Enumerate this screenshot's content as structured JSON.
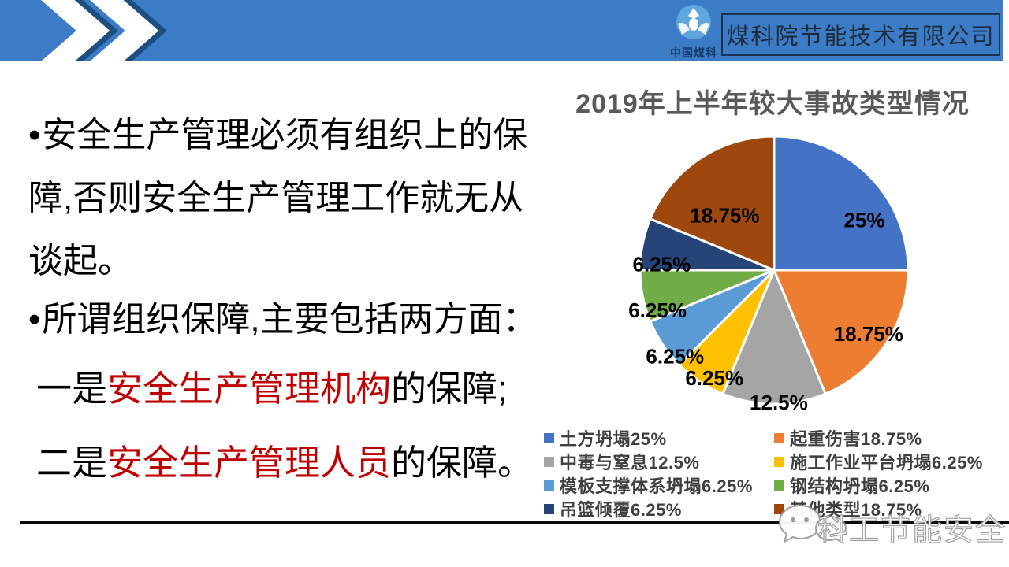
{
  "header": {
    "bar_color": "#3c7bc6",
    "logo_text": "中国煤科",
    "logo_icon_color": "#5fa6df",
    "company_name": "煤科院节能技术有限公司"
  },
  "body": {
    "bullet": "•",
    "p1_lines": [
      "安全生产管理必须有组织上的保",
      "障,否则安全生产管理工作就无从",
      "谈起。"
    ],
    "p2": "所谓组织保障,主要包括两方面：",
    "p3_prefix": "一是",
    "p3_red": "安全生产管理机构",
    "p3_suffix": "的保障;",
    "p4_prefix": "二是",
    "p4_red": "安全生产管理人员",
    "p4_suffix": "的保障。",
    "red_color": "#c00000"
  },
  "chart_data": {
    "type": "pie",
    "title": "2019年上半年较大事故类型情况",
    "start_angle_deg": 0,
    "direction": "clockwise",
    "legend_position": "bottom",
    "legend_columns": 2,
    "slices": [
      {
        "name": "土方坍塌",
        "value": 25,
        "label": "25%",
        "color": "#4472C4",
        "legend_label": "土方坍塌25%",
        "label_angle": 61,
        "label_r": 0.77
      },
      {
        "name": "起重伤害",
        "value": 18.75,
        "label": "18.75%",
        "color": "#ED7D31",
        "legend_label": "起重伤害18.75%",
        "label_angle": 124,
        "label_r": 0.85
      },
      {
        "name": "中毒与窒息",
        "value": 12.5,
        "label": "12.5%",
        "color": "#A5A5A5",
        "legend_label": "中毒与窒息12.5%",
        "label_angle": 178,
        "label_r": 0.99
      },
      {
        "name": "施工作业平台坍塌",
        "value": 6.25,
        "label": "6.25%",
        "color": "#FFC000",
        "legend_label": "施工作业平台坍塌6.25%",
        "label_angle": 209,
        "label_r": 0.92
      },
      {
        "name": "模板支撑体系坍塌",
        "value": 6.25,
        "label": "6.25%",
        "color": "#5B9BD5",
        "legend_label": "模板支撑体系坍塌6.25%",
        "label_angle": 229,
        "label_r": 0.98
      },
      {
        "name": "钢结构坍塌",
        "value": 6.25,
        "label": "6.25%",
        "color": "#70AD47",
        "legend_label": "钢结构坍塌6.25%",
        "label_angle": 251,
        "label_r": 0.92
      },
      {
        "name": "吊篮倾覆",
        "value": 6.25,
        "label": "6.25%",
        "color": "#264478",
        "legend_label": "吊篮倾覆6.25%",
        "label_angle": 273,
        "label_r": 0.84
      },
      {
        "name": "其他类型",
        "value": 18.75,
        "label": "18.75%",
        "color": "#9E480E",
        "legend_label": "其他类型18.75%",
        "label_angle": 318,
        "label_r": 0.55
      }
    ]
  },
  "watermark": {
    "text": "科工节能安全"
  }
}
